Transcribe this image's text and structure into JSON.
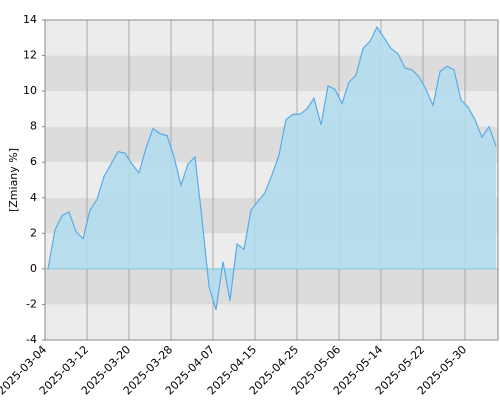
{
  "chart_data": {
    "type": "area",
    "y_label": "[Zmiany %]",
    "categories": [
      "2025-03-04",
      null,
      null,
      null,
      null,
      null,
      "2025-03-12",
      null,
      null,
      null,
      null,
      null,
      "2025-03-20",
      null,
      null,
      null,
      null,
      null,
      "2025-03-28",
      null,
      null,
      null,
      null,
      null,
      "2025-04-07",
      null,
      null,
      null,
      null,
      null,
      "2025-04-15",
      null,
      null,
      null,
      null,
      null,
      "2025-04-25",
      null,
      null,
      null,
      null,
      null,
      "2025-05-06",
      null,
      null,
      null,
      null,
      null,
      "2025-05-14",
      null,
      null,
      null,
      null,
      null,
      "2025-05-22",
      null,
      null,
      null,
      null,
      null,
      "2025-05-30",
      null,
      null,
      null,
      null
    ],
    "values": [
      0,
      2.2,
      3.0,
      3.2,
      2.1,
      1.7,
      3.3,
      3.9,
      5.2,
      5.9,
      6.6,
      6.5,
      5.9,
      5.4,
      6.8,
      7.9,
      7.6,
      7.5,
      6.3,
      4.7,
      5.9,
      6.3,
      2.8,
      -1.0,
      -2.3,
      0.4,
      -1.8,
      1.4,
      1.1,
      3.3,
      3.8,
      4.3,
      5.3,
      6.4,
      8.4,
      8.7,
      8.7,
      9.0,
      9.6,
      8.1,
      10.3,
      10.1,
      9.3,
      10.5,
      10.9,
      12.4,
      12.8,
      13.6,
      13.0,
      12.4,
      12.1,
      11.3,
      11.2,
      10.8,
      10.1,
      9.2,
      11.1,
      11.4,
      11.2,
      9.5,
      9.1,
      8.4,
      7.4,
      8.0,
      6.9
    ],
    "color": "#5aabe8",
    "fill": "#b3dced",
    "ylim": [
      -4,
      14
    ],
    "yticks": [
      -4,
      -2,
      0,
      2,
      4,
      6,
      8,
      10,
      12,
      14
    ],
    "band_colors": [
      "#ececec",
      "#dcdcdc"
    ],
    "grid": true
  }
}
